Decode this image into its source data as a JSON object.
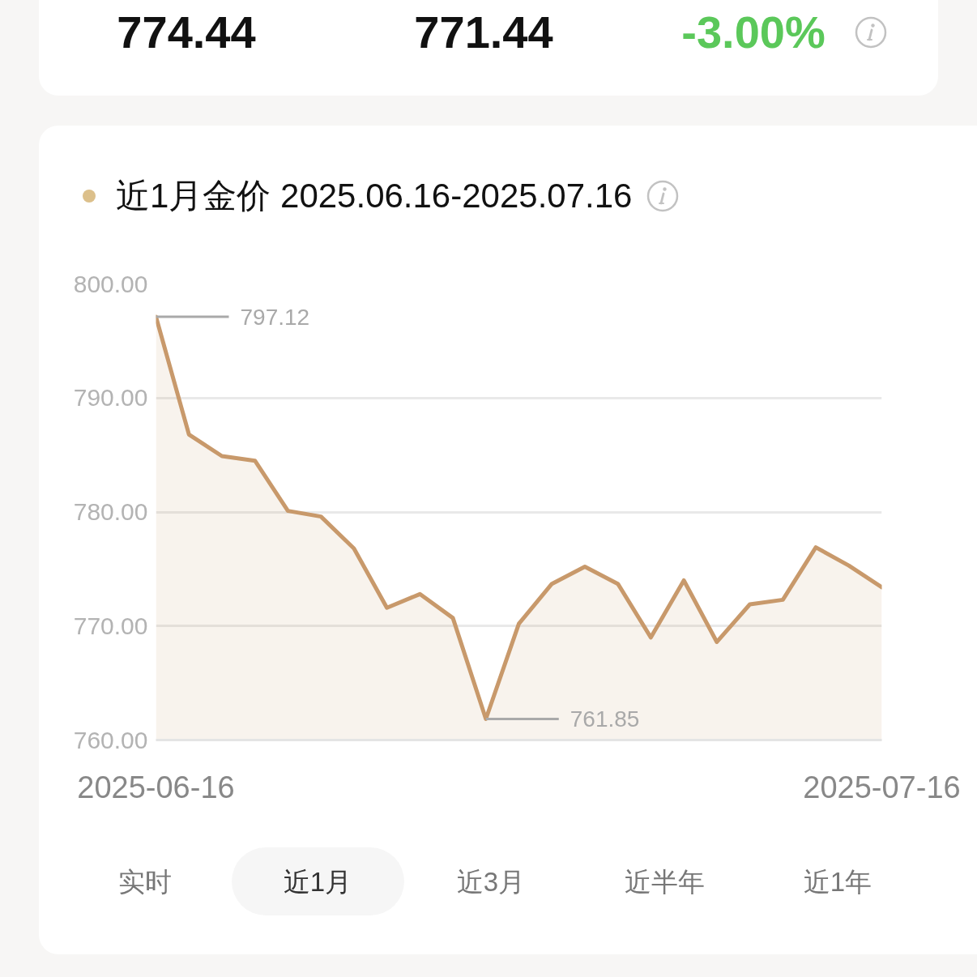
{
  "chart_data": {
    "type": "area",
    "title": "近1月金价 2025.06.16-2025.07.16",
    "categories": [
      "2025-06-16",
      null,
      null,
      null,
      null,
      null,
      null,
      null,
      null,
      null,
      null,
      null,
      null,
      null,
      null,
      null,
      null,
      null,
      null,
      null,
      null,
      null,
      "2025-07-16"
    ],
    "values": [
      797.12,
      786.8,
      784.9,
      784.5,
      780.1,
      779.6,
      776.8,
      771.6,
      772.8,
      770.7,
      761.85,
      770.2,
      773.7,
      775.2,
      773.7,
      769.0,
      774.0,
      768.6,
      771.9,
      772.3,
      776.9,
      775.3,
      773.4
    ],
    "value_labels": [
      "797.12",
      null,
      null,
      null,
      null,
      null,
      null,
      null,
      null,
      null,
      "761.85",
      null,
      null,
      null,
      null,
      null,
      null,
      null,
      null,
      null,
      null,
      null,
      null
    ],
    "color": "#c8996b",
    "ylim": [
      760,
      800
    ],
    "yticks": [
      {
        "value": 760,
        "label": "760.00"
      },
      {
        "value": 770,
        "label": "770.00"
      },
      {
        "value": 780,
        "label": "780.00"
      },
      {
        "value": 790,
        "label": "790.00"
      },
      {
        "value": 800,
        "label": "800.00"
      }
    ],
    "grid": "y",
    "annotations": [
      "774.44",
      "771.44",
      "-3.00%",
      "实时",
      "近1月",
      "近3月",
      "近半年",
      "近1年"
    ]
  }
}
